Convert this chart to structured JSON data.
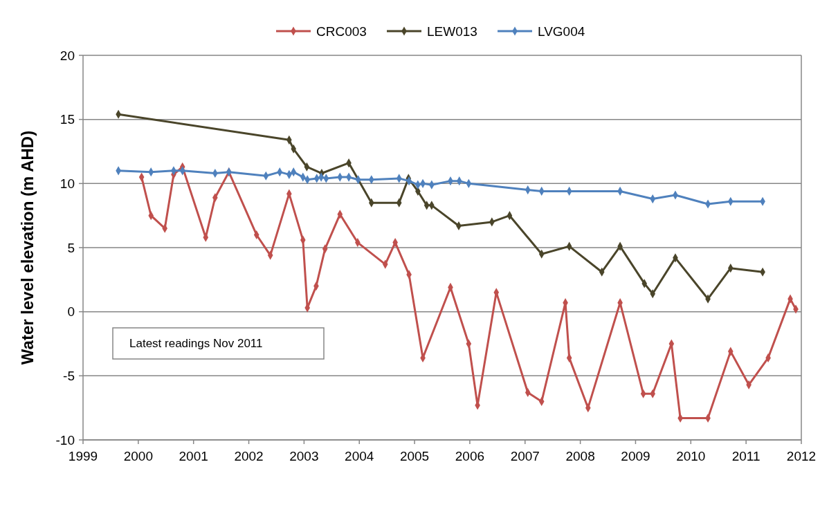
{
  "chart_data": {
    "type": "line",
    "ylabel": "Water level elevation (m AHD)",
    "xlim": [
      1999,
      2012
    ],
    "xticks": [
      1999,
      2000,
      2001,
      2002,
      2003,
      2004,
      2005,
      2006,
      2007,
      2008,
      2009,
      2010,
      2011,
      2012
    ],
    "ylim": [
      -10,
      20
    ],
    "yticks": [
      -10,
      -5,
      0,
      5,
      10,
      15,
      20
    ],
    "grid": "y",
    "legend": "top",
    "marker": "diamond",
    "line_style": "solid",
    "annotations": [
      "Latest readings Nov 2011"
    ],
    "series": [
      {
        "name": "CRC003",
        "color": "#c0504d",
        "x": [
          2000.06,
          2000.23,
          2000.48,
          2000.64,
          2000.8,
          2001.22,
          2001.39,
          2001.64,
          2002.14,
          2002.39,
          2002.73,
          2002.98,
          2003.06,
          2003.22,
          2003.38,
          2003.65,
          2003.97,
          2004.47,
          2004.65,
          2004.9,
          2005.15,
          2005.65,
          2005.98,
          2006.14,
          2006.48,
          2007.05,
          2007.3,
          2007.73,
          2007.8,
          2008.14,
          2008.72,
          2009.14,
          2009.31,
          2009.65,
          2009.81,
          2010.31,
          2010.72,
          2011.05,
          2011.4,
          2011.8,
          2011.9
        ],
        "values": [
          10.5,
          7.5,
          6.5,
          10.7,
          11.3,
          5.8,
          8.9,
          10.9,
          6.0,
          4.4,
          9.2,
          5.6,
          0.3,
          2.0,
          4.9,
          7.6,
          5.4,
          3.7,
          5.4,
          2.9,
          -3.6,
          1.9,
          -2.5,
          -7.3,
          1.5,
          -6.3,
          -7.0,
          0.7,
          -3.6,
          -7.5,
          0.7,
          -6.4,
          -6.4,
          -2.5,
          -8.3,
          -8.3,
          -3.1,
          -5.7,
          -3.6,
          1.0,
          0.2
        ]
      },
      {
        "name": "LEW013",
        "color": "#4a452a",
        "x": [
          1999.64,
          2002.73,
          2002.81,
          2003.05,
          2003.32,
          2003.81,
          2004.22,
          2004.72,
          2004.89,
          2005.06,
          2005.22,
          2005.31,
          2005.8,
          2006.4,
          2006.72,
          2007.3,
          2007.8,
          2008.39,
          2008.72,
          2009.16,
          2009.31,
          2009.72,
          2010.31,
          2010.72,
          2011.3
        ],
        "values": [
          15.4,
          13.4,
          12.7,
          11.3,
          10.8,
          11.6,
          8.5,
          8.5,
          10.4,
          9.4,
          8.3,
          8.3,
          6.7,
          7.0,
          7.5,
          4.5,
          5.1,
          3.1,
          5.1,
          2.2,
          1.4,
          4.2,
          1.0,
          3.4,
          3.1
        ]
      },
      {
        "name": "LVG004",
        "color": "#4f81bd",
        "x": [
          1999.64,
          2000.23,
          2000.64,
          2000.8,
          2001.39,
          2001.64,
          2002.31,
          2002.56,
          2002.73,
          2002.81,
          2002.98,
          2003.06,
          2003.23,
          2003.31,
          2003.4,
          2003.65,
          2003.81,
          2003.98,
          2004.22,
          2004.72,
          2004.9,
          2005.06,
          2005.15,
          2005.31,
          2005.65,
          2005.81,
          2005.98,
          2007.05,
          2007.3,
          2007.8,
          2008.72,
          2009.31,
          2009.72,
          2010.31,
          2010.72,
          2011.3
        ],
        "values": [
          11.0,
          10.9,
          11.0,
          11.0,
          10.8,
          10.9,
          10.6,
          10.9,
          10.7,
          10.9,
          10.5,
          10.3,
          10.4,
          10.5,
          10.4,
          10.5,
          10.5,
          10.3,
          10.3,
          10.4,
          10.2,
          9.9,
          10.0,
          9.9,
          10.2,
          10.2,
          10.0,
          9.5,
          9.4,
          9.4,
          9.4,
          8.8,
          9.1,
          8.4,
          8.6,
          8.6
        ]
      }
    ]
  }
}
